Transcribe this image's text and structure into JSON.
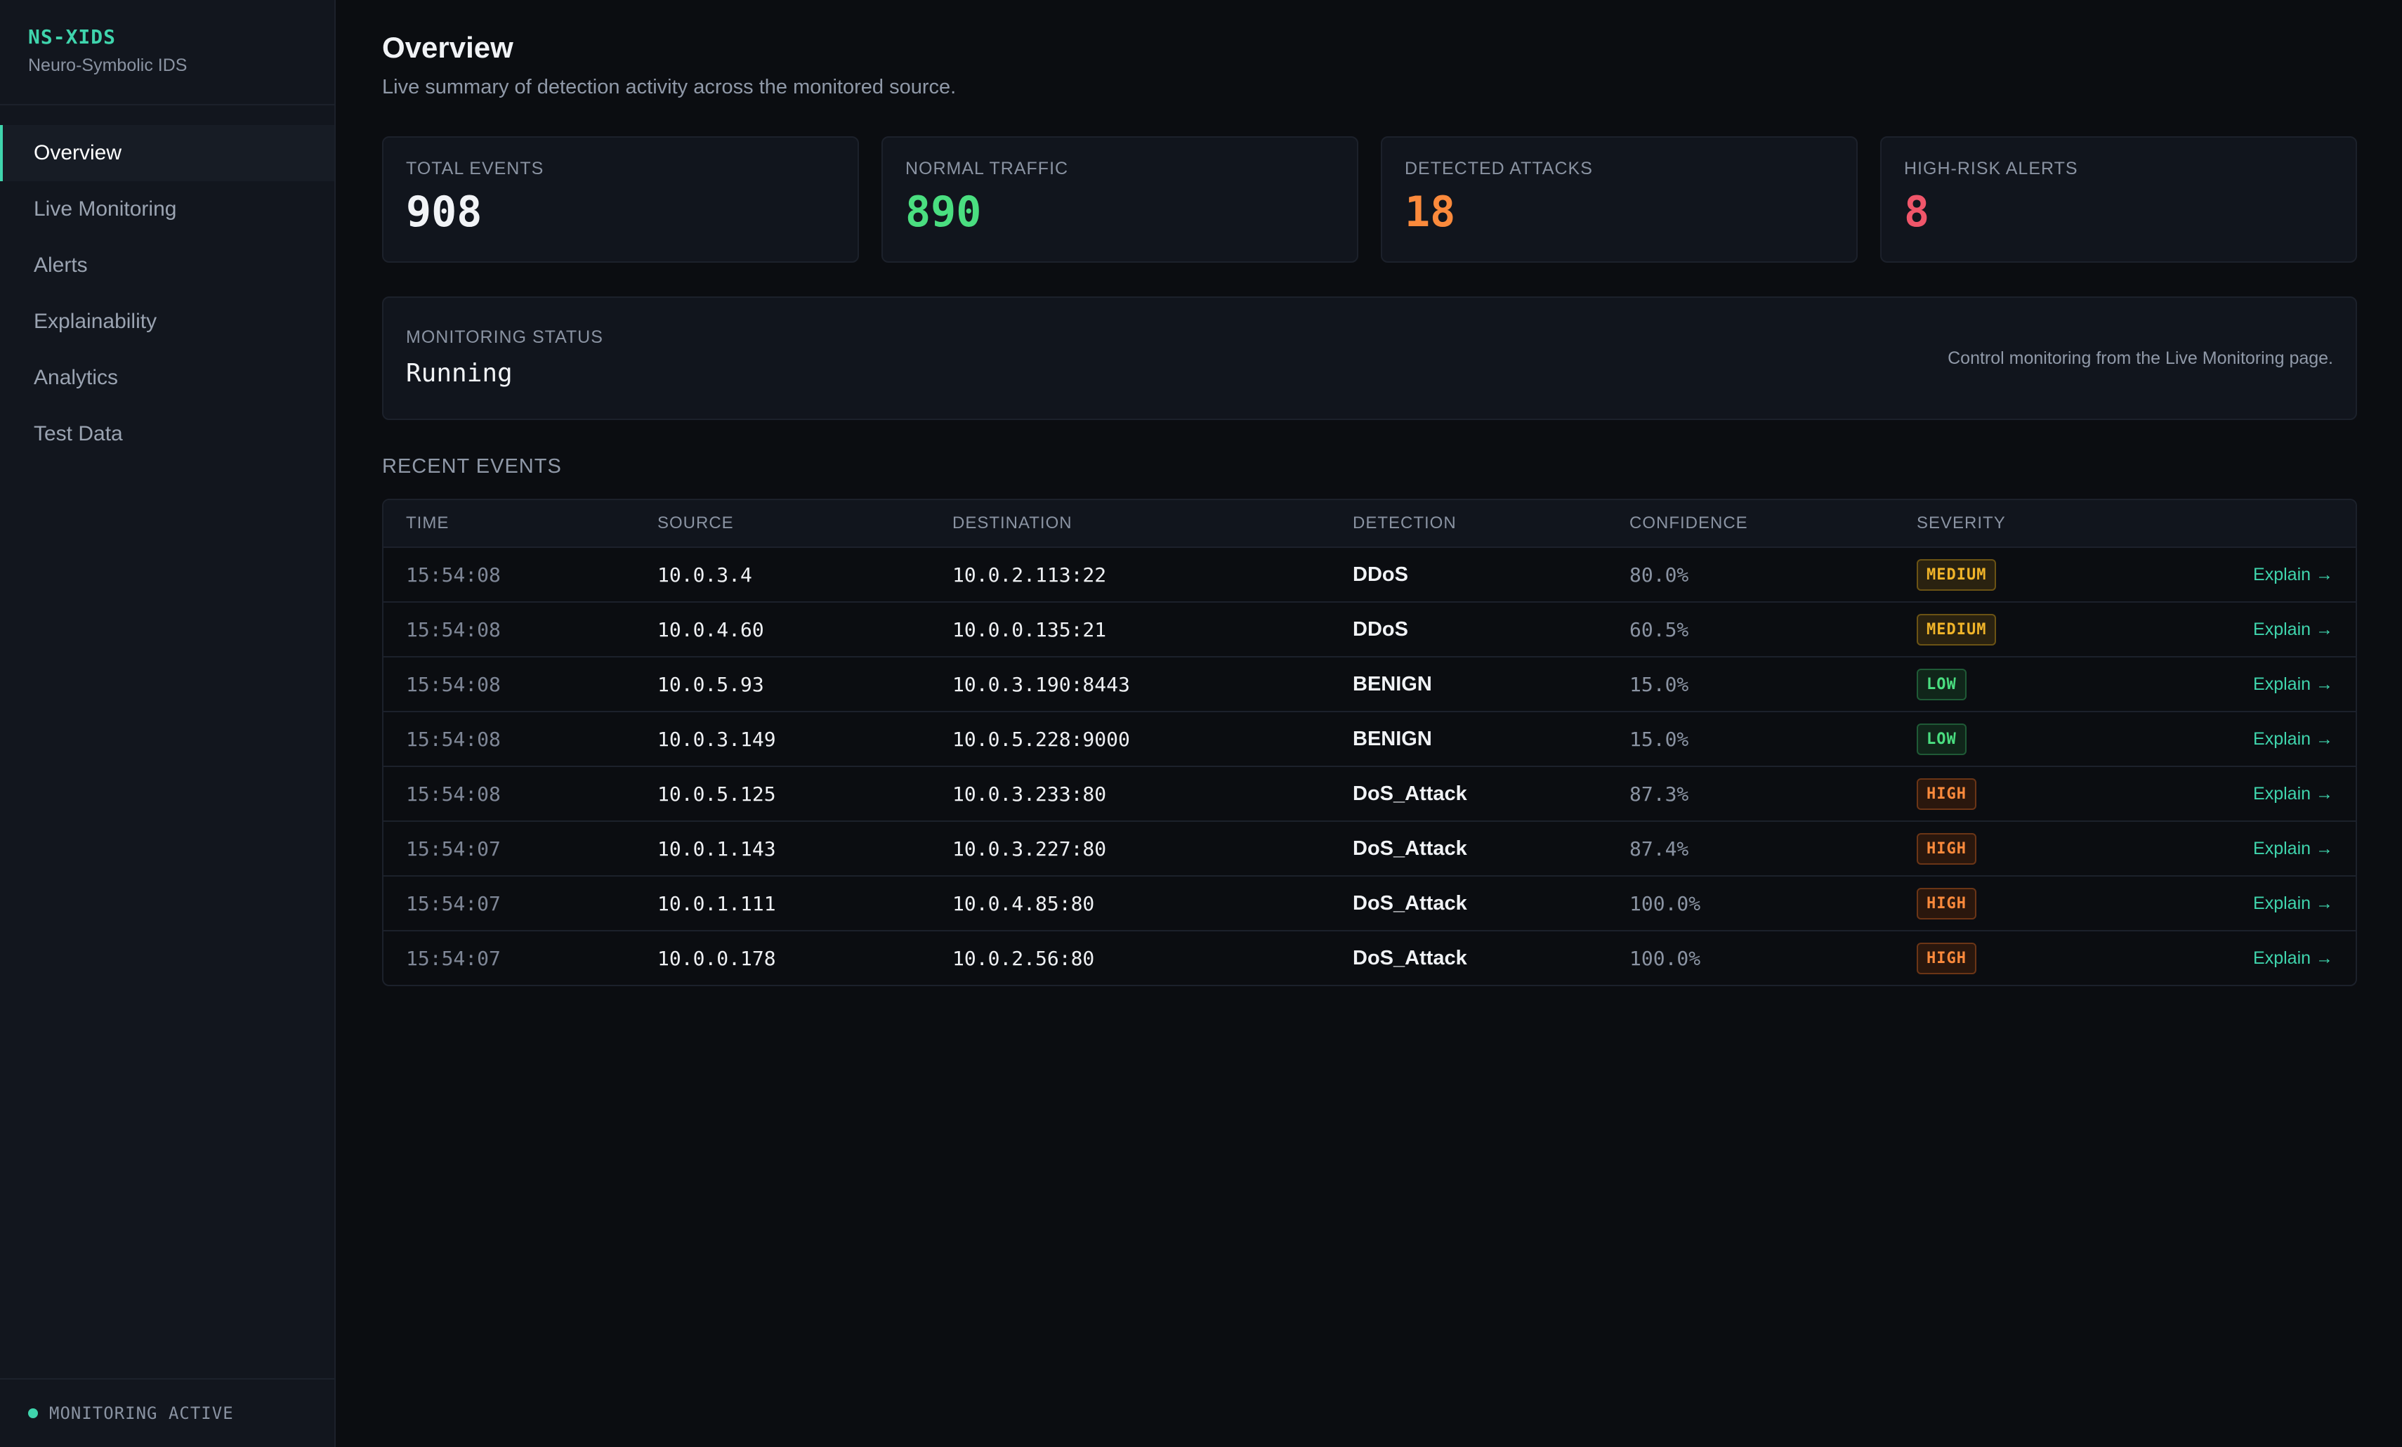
{
  "brand": {
    "name": "NS-XIDS",
    "subtitle": "Neuro-Symbolic IDS"
  },
  "nav": {
    "items": [
      {
        "label": "Overview",
        "active": true
      },
      {
        "label": "Live Monitoring",
        "active": false
      },
      {
        "label": "Alerts",
        "active": false
      },
      {
        "label": "Explainability",
        "active": false
      },
      {
        "label": "Analytics",
        "active": false
      },
      {
        "label": "Test Data",
        "active": false
      }
    ]
  },
  "footer": {
    "status": "MONITORING ACTIVE",
    "color": "#3fd5ad"
  },
  "header": {
    "title": "Overview",
    "subtitle": "Live summary of detection activity across the monitored source."
  },
  "stats": [
    {
      "label": "TOTAL EVENTS",
      "value": "908",
      "color": "#f1f3f6"
    },
    {
      "label": "NORMAL TRAFFIC",
      "value": "890",
      "color": "#4ade80"
    },
    {
      "label": "DETECTED ATTACKS",
      "value": "18",
      "color": "#fb8a3c"
    },
    {
      "label": "HIGH-RISK ALERTS",
      "value": "8",
      "color": "#f0566a"
    }
  ],
  "status": {
    "label": "MONITORING STATUS",
    "value": "Running",
    "note": "Control monitoring from the Live Monitoring page."
  },
  "recent": {
    "title": "RECENT EVENTS",
    "columns": {
      "time": "TIME",
      "source": "SOURCE",
      "destination": "DESTINATION",
      "detection": "DETECTION",
      "confidence": "CONFIDENCE",
      "severity": "SEVERITY"
    },
    "action_label": "Explain →",
    "rows": [
      {
        "time": "15:54:08",
        "source": "10.0.3.4",
        "destination": "10.0.2.113:22",
        "detection": "DDoS",
        "confidence": "80.0%",
        "severity": "MEDIUM"
      },
      {
        "time": "15:54:08",
        "source": "10.0.4.60",
        "destination": "10.0.0.135:21",
        "detection": "DDoS",
        "confidence": "60.5%",
        "severity": "MEDIUM"
      },
      {
        "time": "15:54:08",
        "source": "10.0.5.93",
        "destination": "10.0.3.190:8443",
        "detection": "BENIGN",
        "confidence": "15.0%",
        "severity": "LOW"
      },
      {
        "time": "15:54:08",
        "source": "10.0.3.149",
        "destination": "10.0.5.228:9000",
        "detection": "BENIGN",
        "confidence": "15.0%",
        "severity": "LOW"
      },
      {
        "time": "15:54:08",
        "source": "10.0.5.125",
        "destination": "10.0.3.233:80",
        "detection": "DoS_Attack",
        "confidence": "87.3%",
        "severity": "HIGH"
      },
      {
        "time": "15:54:07",
        "source": "10.0.1.143",
        "destination": "10.0.3.227:80",
        "detection": "DoS_Attack",
        "confidence": "87.4%",
        "severity": "HIGH"
      },
      {
        "time": "15:54:07",
        "source": "10.0.1.111",
        "destination": "10.0.4.85:80",
        "detection": "DoS_Attack",
        "confidence": "100.0%",
        "severity": "HIGH"
      },
      {
        "time": "15:54:07",
        "source": "10.0.0.178",
        "destination": "10.0.2.56:80",
        "detection": "DoS_Attack",
        "confidence": "100.0%",
        "severity": "HIGH"
      }
    ]
  }
}
